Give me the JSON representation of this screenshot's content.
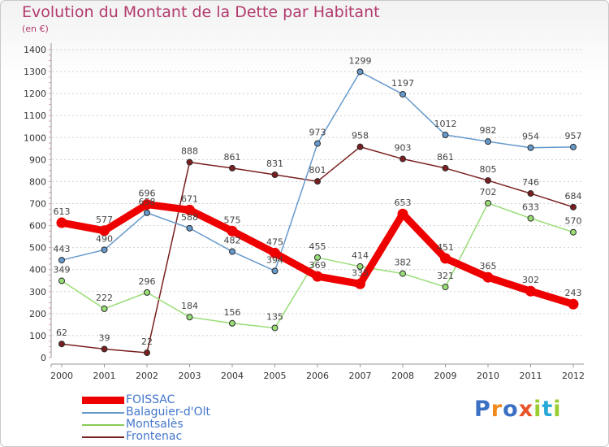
{
  "page": {
    "title": "Evolution du Montant de la Dette par Habitant",
    "unit": "(en €)",
    "logo": "Proxiti",
    "logo_colors": [
      "#3a6fc4",
      "#f08a1c",
      "#3a6fc4",
      "#e8532b",
      "#9acd32",
      "#29a9d6",
      "#9acd32"
    ]
  },
  "chart_data": {
    "type": "line",
    "title": "Evolution du Montant de la Dette par Habitant",
    "subtitle": "(en €)",
    "x": [
      "2000",
      "2001",
      "2002",
      "2003",
      "2004",
      "2005",
      "2006",
      "2007",
      "2008",
      "2009",
      "2010",
      "2011",
      "2012"
    ],
    "ylim": [
      0,
      1400
    ],
    "yticks": [
      "0",
      "100",
      "200",
      "300",
      "400",
      "500",
      "600",
      "700",
      "800",
      "900",
      "1000",
      "1100",
      "1200",
      "1300",
      "1400"
    ],
    "grid": "horizontal dashed",
    "legend": "bottom-left",
    "series": [
      {
        "name": "Frontenac",
        "color": "#7a1f1f",
        "values": [
          62,
          39,
          22,
          888,
          861,
          831,
          801,
          958,
          903,
          861,
          805,
          746,
          684
        ],
        "labels": [
          "62",
          "39",
          "22",
          "888",
          "861",
          "831",
          "801",
          "958",
          "903",
          "861",
          "805",
          "746",
          "684"
        ]
      },
      {
        "name": "Montsalès",
        "color": "#99dd77",
        "values": [
          349,
          222,
          296,
          184,
          156,
          135,
          455,
          414,
          382,
          321,
          702,
          633,
          570
        ],
        "labels": [
          "349",
          "222",
          "296",
          "184",
          "156",
          "135",
          "455",
          "414",
          "382",
          "321",
          "702",
          "633",
          "570"
        ]
      },
      {
        "name": "Balaguier-d'Olt",
        "color": "#6699cc",
        "values": [
          443,
          490,
          658,
          588,
          482,
          394,
          973,
          1299,
          1197,
          1012,
          982,
          954,
          957
        ],
        "labels": [
          "443",
          "490",
          "658",
          "588",
          "482",
          "394",
          "973",
          "1299",
          "1197",
          "1012",
          "982",
          "954",
          "957"
        ]
      },
      {
        "name": "FOISSAC",
        "color": "#ee0000",
        "values": [
          613,
          577,
          696,
          671,
          575,
          475,
          369,
          335,
          653,
          451,
          365,
          302,
          243
        ],
        "labels": [
          "613",
          "577",
          "696",
          "671",
          "575",
          "475",
          "369",
          "335",
          "653",
          "451",
          "365",
          "302",
          "243"
        ]
      }
    ]
  },
  "legend": [
    {
      "label": "FOISSAC",
      "color": "#ee0000",
      "thickness": 9
    },
    {
      "label": "Balaguier-d'Olt",
      "color": "#6699cc",
      "thickness": 2
    },
    {
      "label": "Montsalès",
      "color": "#88cc55",
      "thickness": 2
    },
    {
      "label": "Frontenac",
      "color": "#7a1f1f",
      "thickness": 2
    }
  ]
}
